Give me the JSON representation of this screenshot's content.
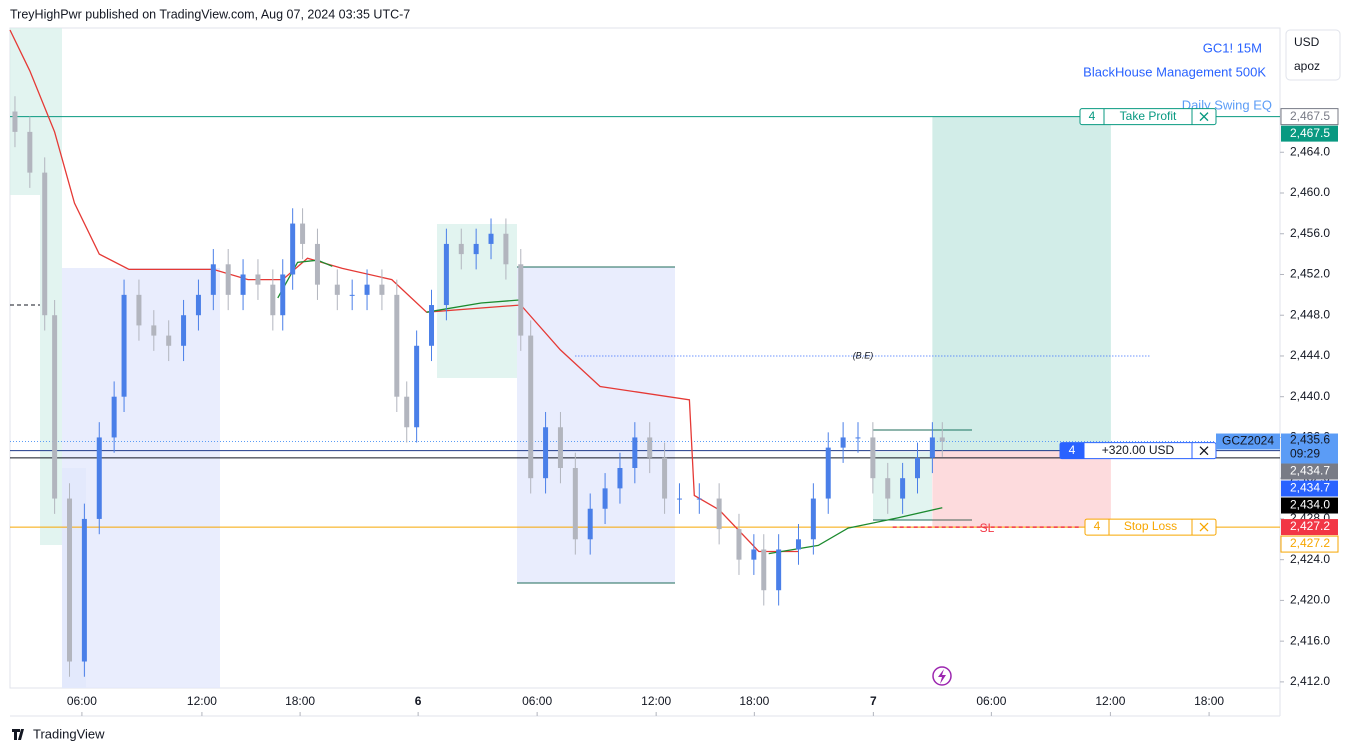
{
  "header": {
    "text": "TreyHighPwr published on TradingView.com, Aug 07, 2024 03:35 UTC-7"
  },
  "footer": {
    "brand": "TradingView"
  },
  "currency": "USD",
  "account": "apoz",
  "chart_data": {
    "type": "candlestick",
    "title": "GC1! 15M",
    "subtitle": "BlackHouse Management 500K",
    "annotation": "Daily Swing EQ",
    "symbol": "GCZ2024",
    "countdown": "09:29",
    "ylim": [
      2411.4,
      2476.2
    ],
    "yticks": [
      {
        "value": 2412,
        "label": "2,412.0"
      },
      {
        "value": 2416,
        "label": "2,416.0"
      },
      {
        "value": 2420,
        "label": "2,420.0"
      },
      {
        "value": 2424,
        "label": "2,424.0"
      },
      {
        "value": 2428,
        "label": "2,428.0"
      },
      {
        "value": 2432,
        "label": "2,432.0"
      },
      {
        "value": 2436,
        "label": "2,436.0"
      },
      {
        "value": 2440,
        "label": "2,440.0"
      },
      {
        "value": 2444,
        "label": "2,444.0"
      },
      {
        "value": 2448,
        "label": "2,448.0"
      },
      {
        "value": 2452,
        "label": "2,452.0"
      },
      {
        "value": 2456,
        "label": "2,456.0"
      },
      {
        "value": 2460,
        "label": "2,460.0"
      },
      {
        "value": 2464,
        "label": "2,464.0"
      }
    ],
    "xlim": [
      0,
      256.1
    ],
    "xticks": [
      {
        "value": 14.5,
        "label": "06:00"
      },
      {
        "value": 38.7,
        "label": "12:00"
      },
      {
        "value": 58.5,
        "label": "18:00"
      },
      {
        "value": 82.3,
        "label": "6"
      },
      {
        "value": 106.3,
        "label": "06:00"
      },
      {
        "value": 130.3,
        "label": "12:00"
      },
      {
        "value": 150.1,
        "label": "18:00"
      },
      {
        "value": 174.1,
        "label": "7"
      },
      {
        "value": 197.9,
        "label": "06:00"
      },
      {
        "value": 221.9,
        "label": "12:00"
      },
      {
        "value": 241.8,
        "label": "18:00"
      }
    ],
    "up_color": "#4a7fe8",
    "down_color": "#b2b5be",
    "x": [
      1,
      4,
      7,
      9,
      12,
      15,
      18,
      21,
      23,
      26,
      29,
      32,
      35,
      38,
      41,
      44,
      47,
      50,
      53,
      55,
      57,
      59,
      62,
      66,
      69,
      72,
      75,
      78,
      80,
      82,
      85,
      88,
      91,
      94,
      97,
      100,
      103,
      105,
      108,
      111,
      114,
      117,
      120,
      123,
      126,
      129,
      132,
      135,
      139,
      143,
      147,
      150,
      152,
      155,
      159,
      162,
      165,
      168,
      171,
      174,
      177,
      180,
      183,
      186,
      188
    ],
    "open": [
      2468,
      2466,
      2462,
      2448,
      2430,
      2414,
      2428,
      2436,
      2440,
      2450,
      2447,
      2446,
      2445,
      2448,
      2450,
      2453,
      2450,
      2452,
      2451,
      2448,
      2452,
      2457,
      2455,
      2451,
      2450,
      2450,
      2451,
      2450,
      2440,
      2437,
      2445,
      2449,
      2455,
      2454,
      2455,
      2456,
      2453,
      2446,
      2432,
      2437,
      2433,
      2426,
      2429,
      2431,
      2433,
      2436,
      2434,
      2430,
      2430,
      2430,
      2427,
      2424,
      2425,
      2421,
      2425,
      2426,
      2430,
      2435,
      2436,
      2436,
      2432,
      2430,
      2432,
      2434,
      2436
    ],
    "high": [
      2469.5,
      2467.5,
      2463.5,
      2449.5,
      2431.5,
      2429.5,
      2437.5,
      2441.5,
      2451.5,
      2451.5,
      2448.5,
      2447.5,
      2449.5,
      2451.5,
      2454.5,
      2454.5,
      2453.5,
      2453.5,
      2452.5,
      2453.5,
      2458.5,
      2458.5,
      2456.5,
      2452.5,
      2451.5,
      2452.5,
      2452.5,
      2451.5,
      2441.5,
      2446.5,
      2450.5,
      2456.5,
      2456.5,
      2456.5,
      2457.5,
      2457.5,
      2454.5,
      2447.5,
      2438.5,
      2438.5,
      2434.5,
      2430.5,
      2432.5,
      2434.5,
      2437.5,
      2437.5,
      2435.5,
      2431.5,
      2431.5,
      2431.5,
      2428.5,
      2426.5,
      2426.5,
      2426.5,
      2427.5,
      2431.5,
      2436.5,
      2437.5,
      2437.5,
      2437.5,
      2433.5,
      2433.5,
      2435.5,
      2437.5,
      2437.5
    ],
    "low": [
      2464.5,
      2460.5,
      2446.5,
      2428.5,
      2412.5,
      2412.5,
      2426.5,
      2434.5,
      2438.5,
      2445.5,
      2444.5,
      2443.5,
      2443.5,
      2446.5,
      2448.5,
      2448.5,
      2448.5,
      2449.5,
      2446.5,
      2446.5,
      2450.5,
      2453.5,
      2449.5,
      2448.5,
      2448.5,
      2448.5,
      2448.5,
      2438.5,
      2435.5,
      2435.5,
      2443.5,
      2447.5,
      2452.5,
      2452.5,
      2453.5,
      2451.5,
      2444.5,
      2430.5,
      2430.5,
      2431.5,
      2424.5,
      2424.5,
      2427.5,
      2429.5,
      2431.5,
      2432.5,
      2428.5,
      2428.5,
      2428.5,
      2425.5,
      2422.5,
      2422.5,
      2419.5,
      2419.5,
      2423.5,
      2424.5,
      2428.5,
      2433.5,
      2434.5,
      2430.5,
      2428.5,
      2428.5,
      2430.5,
      2432.5,
      2434.1
    ],
    "close": [
      2466,
      2462,
      2448,
      2430,
      2414,
      2428,
      2436,
      2440,
      2450,
      2447,
      2446,
      2445,
      2448,
      2450,
      2453,
      2450,
      2452,
      2451,
      2448,
      2452,
      2457,
      2455,
      2451,
      2450,
      2450,
      2451,
      2450,
      2440,
      2437,
      2445,
      2449,
      2455,
      2454,
      2455,
      2456,
      2453,
      2446,
      2432,
      2437,
      2433,
      2426,
      2429,
      2431,
      2433,
      2436,
      2434,
      2430,
      2430,
      2430,
      2427,
      2424,
      2425,
      2421,
      2425,
      2426,
      2430,
      2435,
      2436,
      2436,
      2432,
      2430,
      2432,
      2434,
      2436,
      2435.6
    ],
    "series": [
      {
        "color": "#e53935",
        "x": [
          0,
          4,
          9,
          13,
          18,
          24,
          41,
          48,
          55,
          60,
          67,
          77,
          84,
          103,
          111,
          119,
          137,
          138,
          143,
          151,
          159
        ],
        "values": [
          2476,
          2472,
          2466,
          2459,
          2454,
          2452.5,
          2452.5,
          2451.5,
          2451.5,
          2453.6,
          2452.6,
          2451.5,
          2448.3,
          2449,
          2444.6,
          2441,
          2439.7,
          2430.3,
          2428.9,
          2424.8,
          2424.8
        ]
      },
      {
        "color": "#1b8a2e",
        "x": [
          54,
          58,
          62,
          65,
          66,
          84,
          95,
          103,
          104,
          153,
          163,
          169,
          179,
          188
        ],
        "values": [
          2449.7,
          2453.2,
          2453.4,
          2452.8,
          null,
          2448.3,
          2449.2,
          2449.5,
          null,
          2424.6,
          2425.4,
          2427.1,
          2428.1,
          2429.1
        ]
      }
    ],
    "lines": [
      {
        "value": 2467.5,
        "color": "#089981",
        "dash": ""
      },
      {
        "value": 2435.6,
        "color": "#5b9cf6",
        "dash": "1 2"
      },
      {
        "value": 2434.7,
        "color": "#1e3a8a",
        "dash": ""
      },
      {
        "value": 2434.0,
        "color": "#131722",
        "dash": ""
      },
      {
        "value": 2427.2,
        "color": "#f7a600",
        "dash": ""
      }
    ],
    "position": {
      "entry": 2434.7,
      "target": 2467.5,
      "stop": 2427.2,
      "x": [
        186,
        222
      ]
    },
    "orders": [
      {
        "qty": 4,
        "label": "Take Profit",
        "value": 2467.5,
        "color": "#089981"
      },
      {
        "qty": 4,
        "label": "+320.00 USD",
        "value": 2434.7,
        "color": "#2962ff"
      },
      {
        "qty": 4,
        "label": "Stop Loss",
        "value": 2427.2,
        "color": "#f7a600"
      }
    ],
    "annotations": [
      {
        "text": "(B.E)",
        "value": 2444,
        "x": [
          114,
          230
        ]
      },
      {
        "text": "SL",
        "value": 2427.2,
        "x": [
          178,
          216
        ]
      }
    ],
    "price_labels": [
      {
        "value": 2467.5,
        "label": "2,467.5",
        "bg": "#ffffff",
        "fg": "#787b86"
      },
      {
        "value": 2467.5,
        "label": "2,467.5",
        "bg": "#089981",
        "fg": "#ffffff"
      },
      {
        "value": 2434.7,
        "label": "2,434.7",
        "bg": "#787b86",
        "fg": "#ffffff"
      },
      {
        "value": 2434.7,
        "label": "2,434.7",
        "bg": "#2962ff",
        "fg": "#ffffff"
      },
      {
        "value": 2434.0,
        "label": "2,434.0",
        "bg": "#000000",
        "fg": "#ffffff"
      },
      {
        "value": 2427.2,
        "label": "2,427.2",
        "bg": "#f23645",
        "fg": "#ffffff"
      },
      {
        "value": 2427.2,
        "label": "2,427.2",
        "bg": "#ffffff",
        "fg": "#f7a600"
      }
    ],
    "last": {
      "value": 2435.6,
      "label": "2,435.6",
      "bg": "#5b9cf6",
      "fg": "#131722"
    }
  }
}
